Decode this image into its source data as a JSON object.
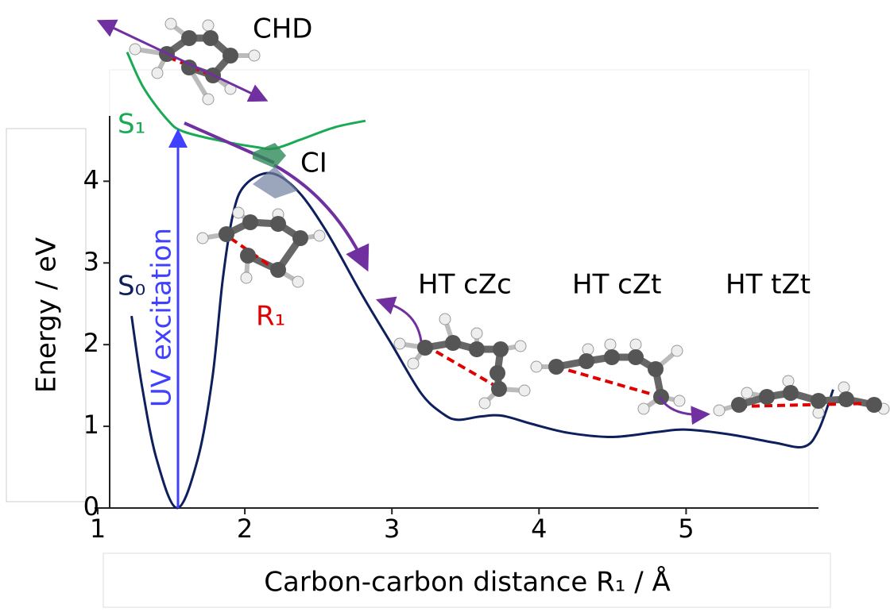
{
  "chart_data": {
    "type": "line",
    "x_label": "Carbon-carbon distance R₁ / Å",
    "y_label": "Energy / eV",
    "xlim": [
      1,
      5.9
    ],
    "xticks": [
      1,
      2,
      3,
      4,
      5
    ],
    "ylim": [
      0,
      4.8
    ],
    "yticks": [
      0,
      1,
      2,
      3,
      4
    ],
    "series": [
      {
        "name": "S₀",
        "color": "#0d1f5c",
        "x": [
          1.23,
          1.3,
          1.4,
          1.54,
          1.68,
          1.78,
          1.85,
          1.92,
          2.0,
          2.17,
          2.35,
          2.55,
          2.8,
          3.0,
          3.2,
          3.35,
          3.45,
          3.6,
          3.75,
          3.95,
          4.2,
          4.5,
          4.8,
          5.0,
          5.3,
          5.6,
          5.8,
          5.9,
          6.0
        ],
        "values": [
          2.35,
          1.5,
          0.6,
          0,
          0.6,
          1.6,
          2.8,
          3.6,
          3.95,
          4.1,
          3.9,
          3.4,
          2.6,
          2.0,
          1.4,
          1.15,
          1.08,
          1.12,
          1.13,
          1.03,
          0.92,
          0.87,
          0.93,
          0.96,
          0.9,
          0.8,
          0.75,
          0.95,
          1.45
        ]
      },
      {
        "name": "S₁",
        "color": "#1aaa55",
        "x": [
          1.2,
          1.31,
          1.47,
          1.58,
          1.85,
          2.07,
          2.2,
          2.38,
          2.61,
          2.82
        ],
        "values": [
          5.58,
          5.15,
          4.76,
          4.61,
          4.49,
          4.42,
          4.4,
          4.51,
          4.66,
          4.74
        ]
      }
    ],
    "annotations": [
      "CHD",
      "CI",
      "R₁",
      "HT cZc",
      "HT cZt",
      "HT tZt",
      "UV excitation"
    ]
  }
}
